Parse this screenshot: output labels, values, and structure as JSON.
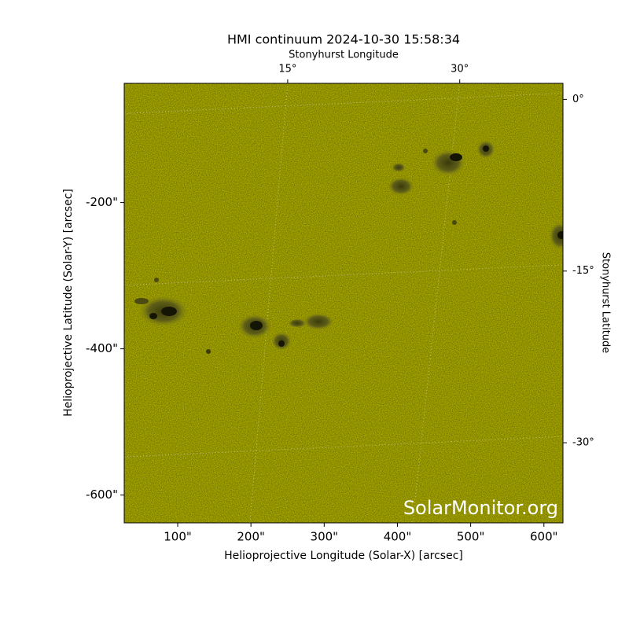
{
  "chart_data": {
    "type": "image",
    "title": "HMI continuum 2024-10-30 15:58:34",
    "xlabel": "Helioprojective Longitude (Solar-X) [arcsec]",
    "ylabel": "Helioprojective Latitude (Solar-Y) [arcsec]",
    "x2label": "Stonyhurst Longitude",
    "y2label": "Stonyhurst Latitude",
    "watermark": "SolarMonitor.org",
    "xlim": [
      27,
      626
    ],
    "ylim": [
      -638,
      -37
    ],
    "xticks": [
      {
        "value": 100,
        "label": "100\""
      },
      {
        "value": 200,
        "label": "200\""
      },
      {
        "value": 300,
        "label": "300\""
      },
      {
        "value": 400,
        "label": "400\""
      },
      {
        "value": 500,
        "label": "500\""
      },
      {
        "value": 600,
        "label": "600\""
      }
    ],
    "yticks": [
      {
        "value": -200,
        "label": "-200\""
      },
      {
        "value": -400,
        "label": "-400\""
      },
      {
        "value": -600,
        "label": "-600\""
      }
    ],
    "x2lim": [
      0.75,
      39
    ],
    "x2ticks": [
      {
        "value": 15,
        "label": "15°"
      },
      {
        "value": 30,
        "label": "30°"
      }
    ],
    "y2lim": [
      -37,
      1.4
    ],
    "y2ticks": [
      {
        "value": 0,
        "label": "0°"
      },
      {
        "value": -15,
        "label": "-15°"
      },
      {
        "value": -30,
        "label": "-30°"
      }
    ],
    "color": "#c9c900"
  }
}
